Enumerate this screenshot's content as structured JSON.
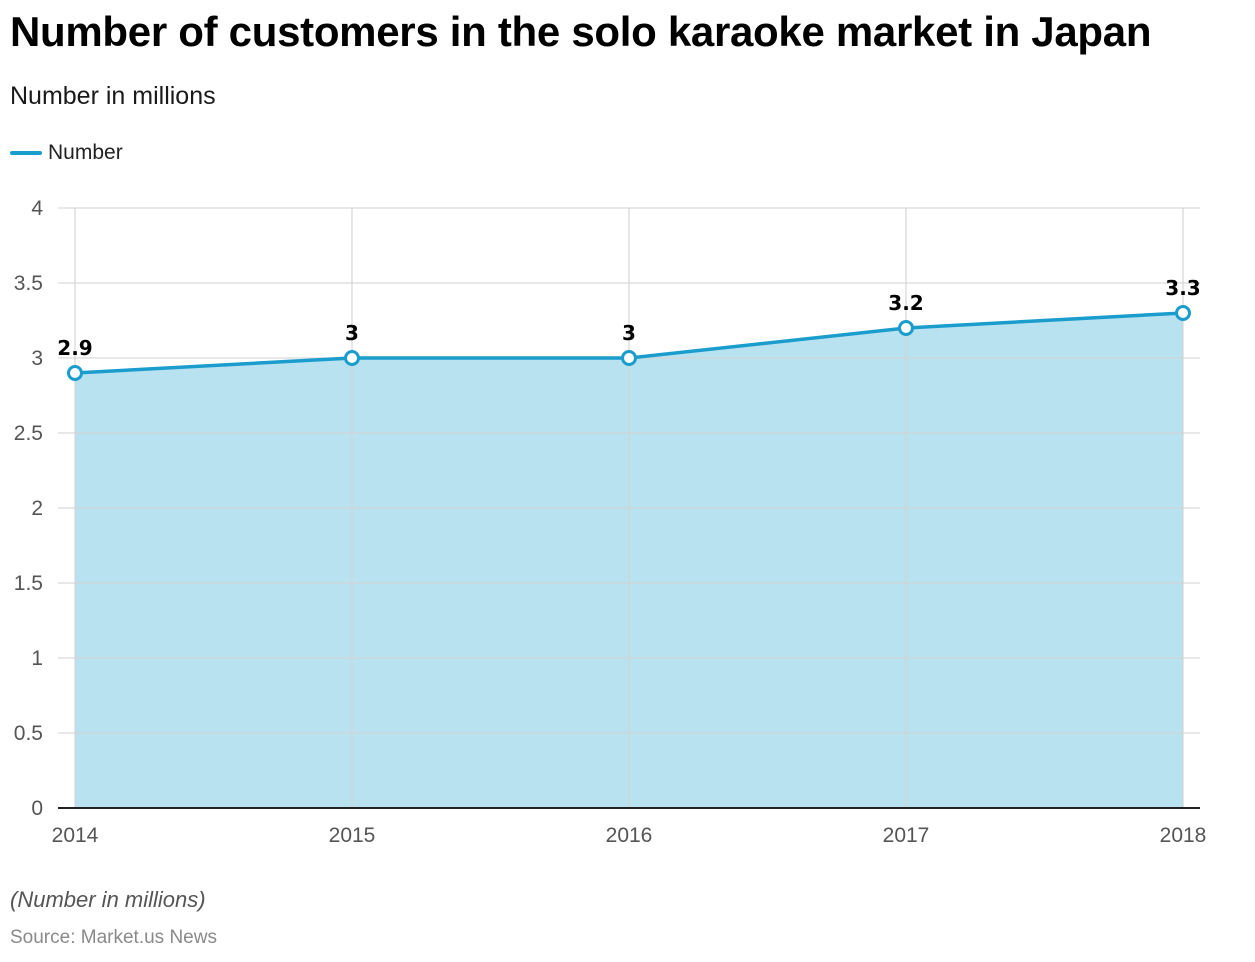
{
  "header": {
    "title": "Number of customers in the solo karaoke market in Japan",
    "subtitle": "Number in millions"
  },
  "legend": {
    "label": "Number",
    "color": "#1a9dcc"
  },
  "footer": {
    "note": "(Number in millions)",
    "source": "Source: Market.us News"
  },
  "colors": {
    "line": "#1a9dcc",
    "area": "#b8e2f0",
    "grid": "#d4d4d4",
    "axis": "#222222"
  },
  "chart_data": {
    "type": "area",
    "title": "Number of customers in the solo karaoke market in Japan",
    "subtitle": "Number in millions",
    "xlabel": "",
    "ylabel": "",
    "categories": [
      "2014",
      "2015",
      "2016",
      "2017",
      "2018"
    ],
    "series": [
      {
        "name": "Number",
        "values": [
          2.9,
          3,
          3,
          3.2,
          3.3
        ],
        "labels": [
          "2.9",
          "3",
          "3",
          "3.2",
          "3.3"
        ]
      }
    ],
    "ylim": [
      0,
      4
    ],
    "yticks": [
      "0",
      "0.5",
      "1",
      "1.5",
      "2",
      "2.5",
      "3",
      "3.5",
      "4"
    ],
    "grid": true,
    "legend_position": "top-left"
  }
}
